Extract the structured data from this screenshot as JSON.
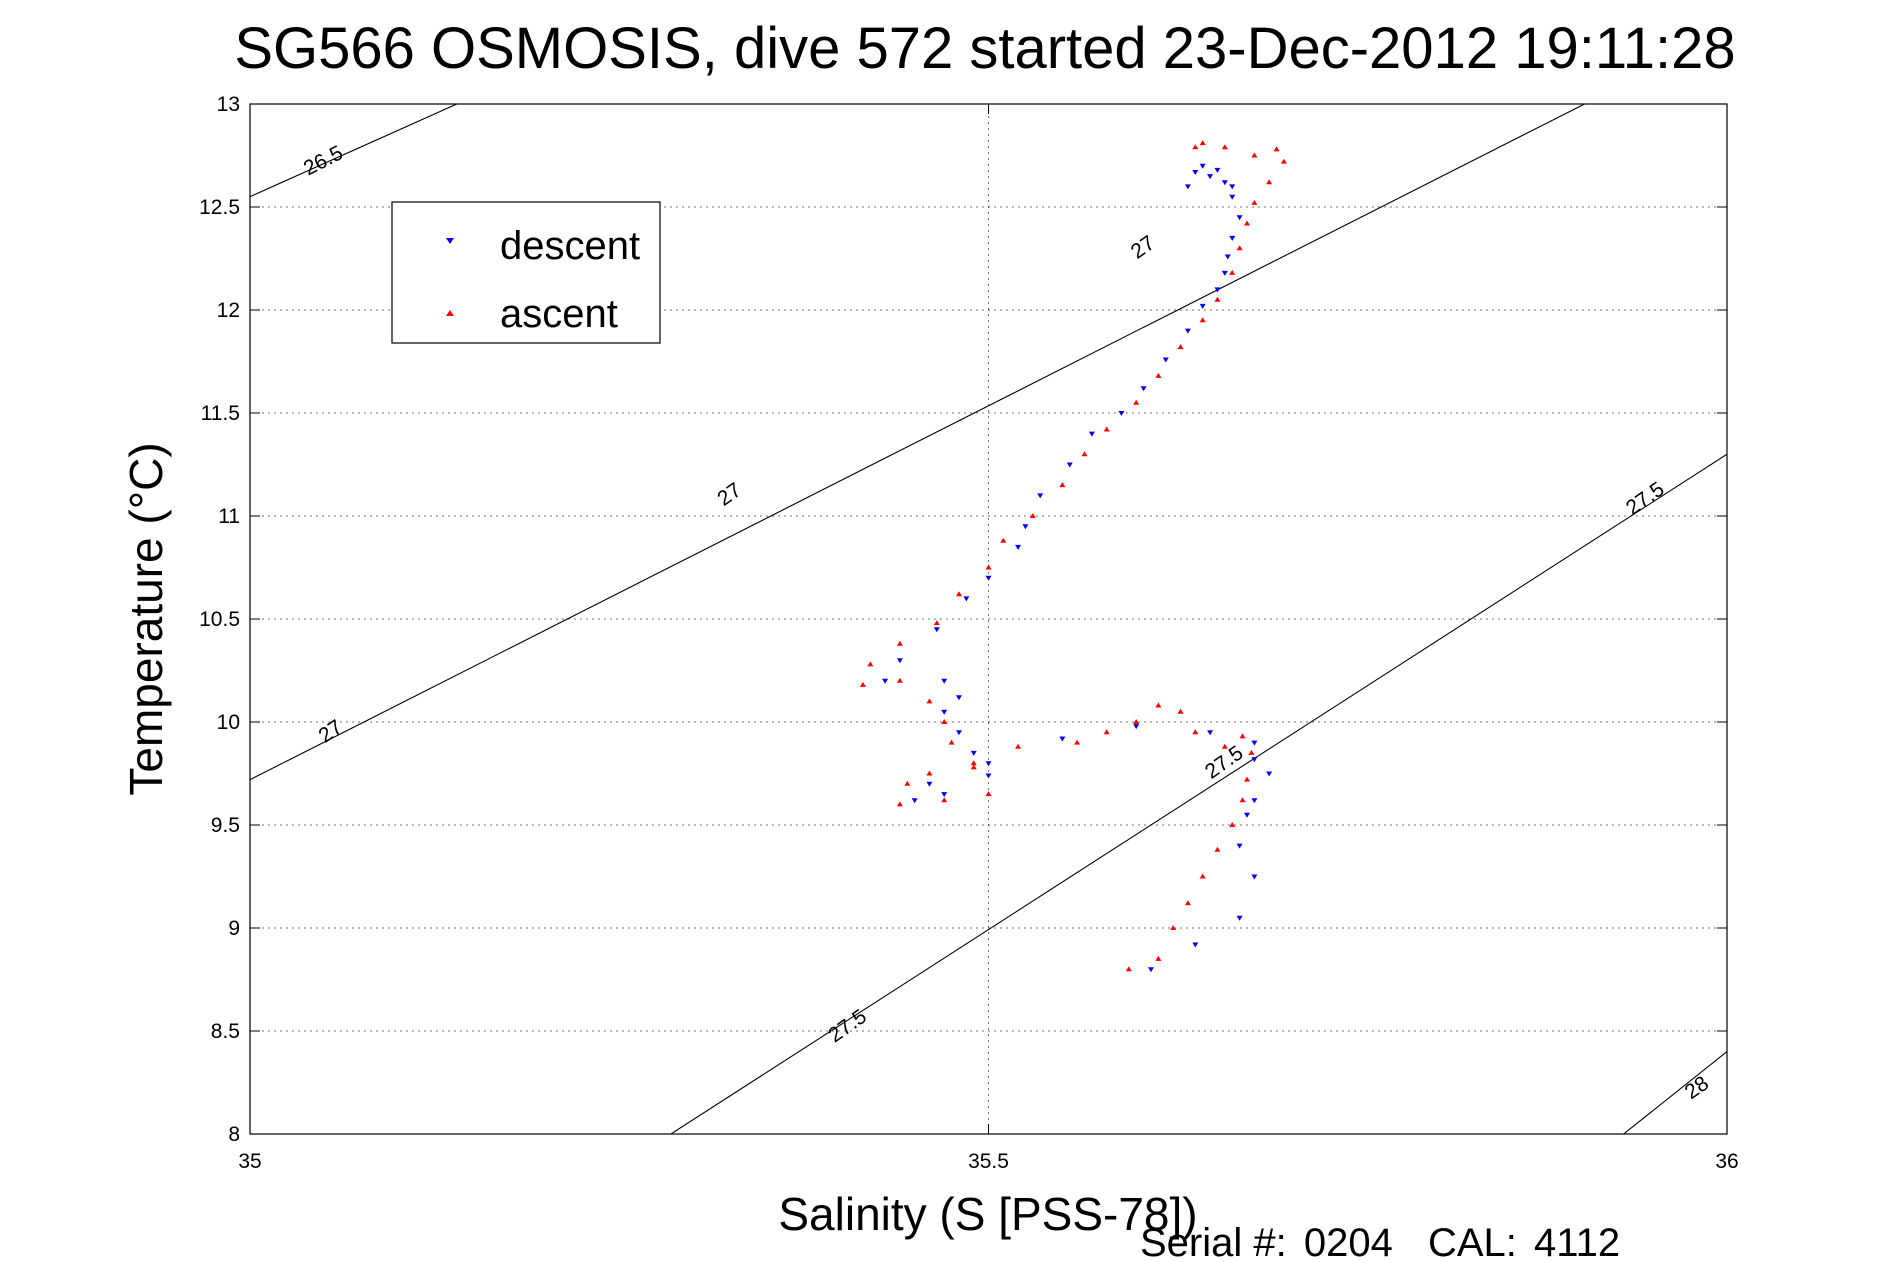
{
  "chart_data": {
    "type": "scatter",
    "title": "SG566 OSMOSIS, dive 572 started 23-Dec-2012 19:11:28",
    "xlabel": "Salinity (S [PSS-78])",
    "ylabel": "Temperature (°C)",
    "xlim": [
      35,
      36
    ],
    "ylim": [
      8,
      13
    ],
    "x_ticks": [
      35,
      35.5,
      36
    ],
    "x_tick_labels": [
      "35",
      "35.5",
      "36"
    ],
    "y_ticks": [
      8,
      8.5,
      9,
      9.5,
      10,
      10.5,
      11,
      11.5,
      12,
      12.5,
      13
    ],
    "y_tick_labels": [
      "8",
      "8.5",
      "9",
      "9.5",
      "10",
      "10.5",
      "11",
      "11.5",
      "12",
      "12.5",
      "13"
    ],
    "grid": true,
    "legend_position": "top-left",
    "series": [
      {
        "name": "descent",
        "color": "#0000ff",
        "marker": "triangle-down",
        "points": [
          [
            35.61,
            8.8
          ],
          [
            35.64,
            8.92
          ],
          [
            35.67,
            9.05
          ],
          [
            35.68,
            9.25
          ],
          [
            35.67,
            9.4
          ],
          [
            35.675,
            9.55
          ],
          [
            35.68,
            9.62
          ],
          [
            35.69,
            9.75
          ],
          [
            35.68,
            9.82
          ],
          [
            35.68,
            9.9
          ],
          [
            35.65,
            9.95
          ],
          [
            35.6,
            9.98
          ],
          [
            35.55,
            9.92
          ],
          [
            35.5,
            9.8
          ],
          [
            35.46,
            9.7
          ],
          [
            35.45,
            9.62
          ],
          [
            35.47,
            9.65
          ],
          [
            35.5,
            9.74
          ],
          [
            35.49,
            9.85
          ],
          [
            35.48,
            9.95
          ],
          [
            35.47,
            10.05
          ],
          [
            35.48,
            10.12
          ],
          [
            35.47,
            10.2
          ],
          [
            35.43,
            10.2
          ],
          [
            35.44,
            10.3
          ],
          [
            35.465,
            10.45
          ],
          [
            35.485,
            10.6
          ],
          [
            35.5,
            10.7
          ],
          [
            35.52,
            10.85
          ],
          [
            35.525,
            10.95
          ],
          [
            35.535,
            11.1
          ],
          [
            35.555,
            11.25
          ],
          [
            35.57,
            11.4
          ],
          [
            35.59,
            11.5
          ],
          [
            35.605,
            11.62
          ],
          [
            35.62,
            11.76
          ],
          [
            35.635,
            11.9
          ],
          [
            35.645,
            12.02
          ],
          [
            35.655,
            12.1
          ],
          [
            35.66,
            12.18
          ],
          [
            35.662,
            12.26
          ],
          [
            35.665,
            12.35
          ],
          [
            35.67,
            12.45
          ],
          [
            35.665,
            12.55
          ],
          [
            35.66,
            12.62
          ],
          [
            35.65,
            12.65
          ],
          [
            35.635,
            12.6
          ],
          [
            35.64,
            12.67
          ],
          [
            35.645,
            12.7
          ],
          [
            35.655,
            12.68
          ],
          [
            35.665,
            12.6
          ]
        ]
      },
      {
        "name": "ascent",
        "color": "#ff0000",
        "marker": "triangle-up",
        "points": [
          [
            35.595,
            8.8
          ],
          [
            35.615,
            8.85
          ],
          [
            35.625,
            9.0
          ],
          [
            35.635,
            9.12
          ],
          [
            35.645,
            9.25
          ],
          [
            35.655,
            9.38
          ],
          [
            35.665,
            9.5
          ],
          [
            35.672,
            9.62
          ],
          [
            35.675,
            9.72
          ],
          [
            35.678,
            9.85
          ],
          [
            35.672,
            9.93
          ],
          [
            35.66,
            9.88
          ],
          [
            35.64,
            9.95
          ],
          [
            35.63,
            10.05
          ],
          [
            35.615,
            10.08
          ],
          [
            35.6,
            10.0
          ],
          [
            35.58,
            9.95
          ],
          [
            35.56,
            9.9
          ],
          [
            35.52,
            9.88
          ],
          [
            35.49,
            9.8
          ],
          [
            35.46,
            9.75
          ],
          [
            35.445,
            9.7
          ],
          [
            35.44,
            9.6
          ],
          [
            35.47,
            9.62
          ],
          [
            35.5,
            9.65
          ],
          [
            35.49,
            9.78
          ],
          [
            35.475,
            9.9
          ],
          [
            35.47,
            10.0
          ],
          [
            35.46,
            10.1
          ],
          [
            35.44,
            10.2
          ],
          [
            35.415,
            10.18
          ],
          [
            35.42,
            10.28
          ],
          [
            35.44,
            10.38
          ],
          [
            35.465,
            10.48
          ],
          [
            35.48,
            10.62
          ],
          [
            35.5,
            10.75
          ],
          [
            35.51,
            10.88
          ],
          [
            35.53,
            11.0
          ],
          [
            35.55,
            11.15
          ],
          [
            35.565,
            11.3
          ],
          [
            35.58,
            11.42
          ],
          [
            35.6,
            11.55
          ],
          [
            35.615,
            11.68
          ],
          [
            35.63,
            11.82
          ],
          [
            35.645,
            11.95
          ],
          [
            35.655,
            12.05
          ],
          [
            35.665,
            12.18
          ],
          [
            35.67,
            12.3
          ],
          [
            35.675,
            12.42
          ],
          [
            35.68,
            12.52
          ],
          [
            35.69,
            12.62
          ],
          [
            35.7,
            12.72
          ],
          [
            35.695,
            12.78
          ],
          [
            35.68,
            12.75
          ],
          [
            35.66,
            12.79
          ],
          [
            35.645,
            12.81
          ],
          [
            35.64,
            12.79
          ]
        ]
      }
    ],
    "contours": [
      {
        "label": "26.5",
        "points": [
          [
            35.0,
            12.55
          ],
          [
            35.14,
            13.0
          ]
        ]
      },
      {
        "label": "27",
        "points": [
          [
            35.0,
            9.72
          ],
          [
            36.0,
            13.35
          ]
        ]
      },
      {
        "label": "27.5",
        "points": [
          [
            35.285,
            8.0
          ],
          [
            36.0,
            11.3
          ]
        ]
      },
      {
        "label": "28",
        "points": [
          [
            35.93,
            8.0
          ],
          [
            36.0,
            8.4
          ]
        ]
      }
    ],
    "contour_labels": [
      {
        "text": "26.5",
        "x": 35.05,
        "y": 12.72,
        "angle": -27
      },
      {
        "text": "27",
        "x": 35.055,
        "y": 9.95,
        "angle": -35
      },
      {
        "text": "27",
        "x": 35.325,
        "y": 11.1,
        "angle": -35
      },
      {
        "text": "27",
        "x": 35.605,
        "y": 12.3,
        "angle": -35
      },
      {
        "text": "27.5",
        "x": 35.405,
        "y": 8.52,
        "angle": -35
      },
      {
        "text": "27.5",
        "x": 35.66,
        "y": 9.8,
        "angle": -35
      },
      {
        "text": "27.5",
        "x": 35.945,
        "y": 11.08,
        "angle": -35
      },
      {
        "text": "28",
        "x": 35.98,
        "y": 8.22,
        "angle": -35
      }
    ]
  },
  "footer": {
    "serial_label": "Serial #:",
    "serial_value": "0204",
    "cal_label": "CAL:",
    "cal_value": "4112"
  }
}
